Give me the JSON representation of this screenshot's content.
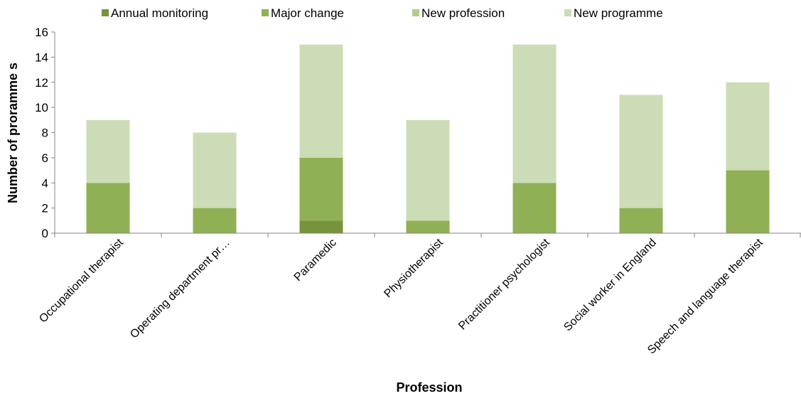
{
  "chart_data": {
    "type": "bar",
    "stacked": true,
    "title": "",
    "xlabel": "Profession",
    "ylabel": "Number of proramme s",
    "ylim": [
      0,
      16
    ],
    "yticks": [
      0,
      2,
      4,
      6,
      8,
      10,
      12,
      14,
      16
    ],
    "legend_position": "top",
    "grid": false,
    "categories": [
      "Occupational therapist",
      "Operating department pr…",
      "Paramedic",
      "Physiotherapist",
      "Practitioner psychologist",
      "Social worker in England",
      "Speech and language therapist"
    ],
    "series": [
      {
        "name": "Annual monitoring",
        "color": "#77933c",
        "values": [
          0,
          0,
          1,
          0,
          0,
          0,
          0
        ]
      },
      {
        "name": "Major change",
        "color": "#8fb054",
        "values": [
          4,
          2,
          5,
          1,
          4,
          2,
          5
        ]
      },
      {
        "name": "New profession",
        "color": "#b3cc8c",
        "values": [
          0,
          0,
          0,
          0,
          0,
          0,
          0
        ]
      },
      {
        "name": "New programme",
        "color": "#ccdcb6",
        "values": [
          5,
          6,
          9,
          8,
          11,
          9,
          7
        ]
      }
    ]
  }
}
